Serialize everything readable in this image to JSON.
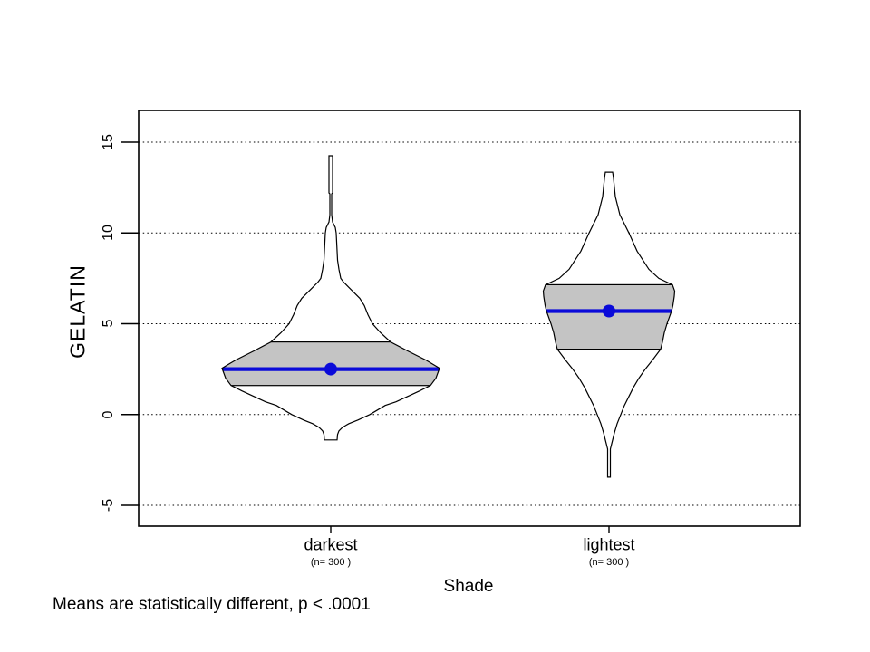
{
  "annotation": "Means are statistically different,  p < .0001",
  "chart_data": {
    "type": "violin",
    "title": "",
    "xlabel": "Shade",
    "ylabel": "GELATIN",
    "ylim": [
      -6.3,
      16.7
    ],
    "yticks": [
      15,
      10,
      5,
      0,
      -5
    ],
    "grid": "dotted horizontal line at every y tick, hidden behind violins",
    "legend": "none",
    "colors": {
      "background": "#ffffff",
      "violin_fill": "#ffffff",
      "violin_outline": "#000000",
      "iqr_box_fill": "#c4c4c4",
      "iqr_box_outline": "#000000",
      "mean_line": "#0a0ad9",
      "mean_dot": "#0a0ad9",
      "text": "#000000"
    },
    "categories": [
      {
        "label": "darkest",
        "n_label": "(n= 300 )",
        "n": 300,
        "mean": 2.5,
        "q1": 1.6,
        "q3": 4.0,
        "min": -1.4,
        "max": 14.25,
        "profile_value_halfwidthpx": [
          [
            14.25,
            2
          ],
          [
            12.2,
            2
          ],
          [
            12.15,
            1
          ],
          [
            11.0,
            1
          ],
          [
            10.6,
            2
          ],
          [
            10.3,
            5
          ],
          [
            10.0,
            6
          ],
          [
            9.5,
            6.5
          ],
          [
            9.0,
            7
          ],
          [
            8.5,
            7.5
          ],
          [
            8.0,
            9
          ],
          [
            7.5,
            11
          ],
          [
            7.3,
            14
          ],
          [
            7.0,
            20
          ],
          [
            6.4,
            32
          ],
          [
            6.0,
            37
          ],
          [
            5.5,
            41
          ],
          [
            5.0,
            46
          ],
          [
            4.5,
            55
          ],
          [
            4.0,
            66
          ],
          [
            3.5,
            85
          ],
          [
            3.0,
            105
          ],
          [
            2.55,
            120
          ],
          [
            2.0,
            116
          ],
          [
            1.6,
            110
          ],
          [
            1.3,
            98
          ],
          [
            1.0,
            85
          ],
          [
            0.7,
            72
          ],
          [
            0.5,
            60
          ],
          [
            0.2,
            50
          ],
          [
            0.0,
            43
          ],
          [
            -0.3,
            30
          ],
          [
            -0.5,
            20
          ],
          [
            -0.7,
            13
          ],
          [
            -0.9,
            9
          ],
          [
            -1.1,
            7.5
          ],
          [
            -1.4,
            7
          ]
        ]
      },
      {
        "label": "lightest",
        "n_label": "(n= 300 )",
        "n": 300,
        "mean": 5.7,
        "q1": 3.6,
        "q3": 7.15,
        "min": -3.45,
        "max": 13.35,
        "profile_value_halfwidthpx": [
          [
            13.35,
            4
          ],
          [
            13.0,
            5
          ],
          [
            12.0,
            7
          ],
          [
            11.0,
            12
          ],
          [
            10.0,
            22
          ],
          [
            9.0,
            31
          ],
          [
            8.0,
            44
          ],
          [
            7.5,
            55
          ],
          [
            7.15,
            70
          ],
          [
            6.8,
            72.5
          ],
          [
            6.5,
            72
          ],
          [
            6.0,
            70.5
          ],
          [
            5.7,
            69
          ],
          [
            5.0,
            64
          ],
          [
            4.5,
            61
          ],
          [
            4.0,
            59
          ],
          [
            3.6,
            57
          ],
          [
            3.0,
            48
          ],
          [
            2.5,
            40
          ],
          [
            2.0,
            33
          ],
          [
            1.5,
            27
          ],
          [
            1.0,
            22
          ],
          [
            0.5,
            17
          ],
          [
            0.0,
            13
          ],
          [
            -0.5,
            9
          ],
          [
            -1.0,
            6
          ],
          [
            -1.6,
            3
          ],
          [
            -1.9,
            1.5
          ],
          [
            -3.45,
            1.5
          ]
        ]
      }
    ]
  }
}
